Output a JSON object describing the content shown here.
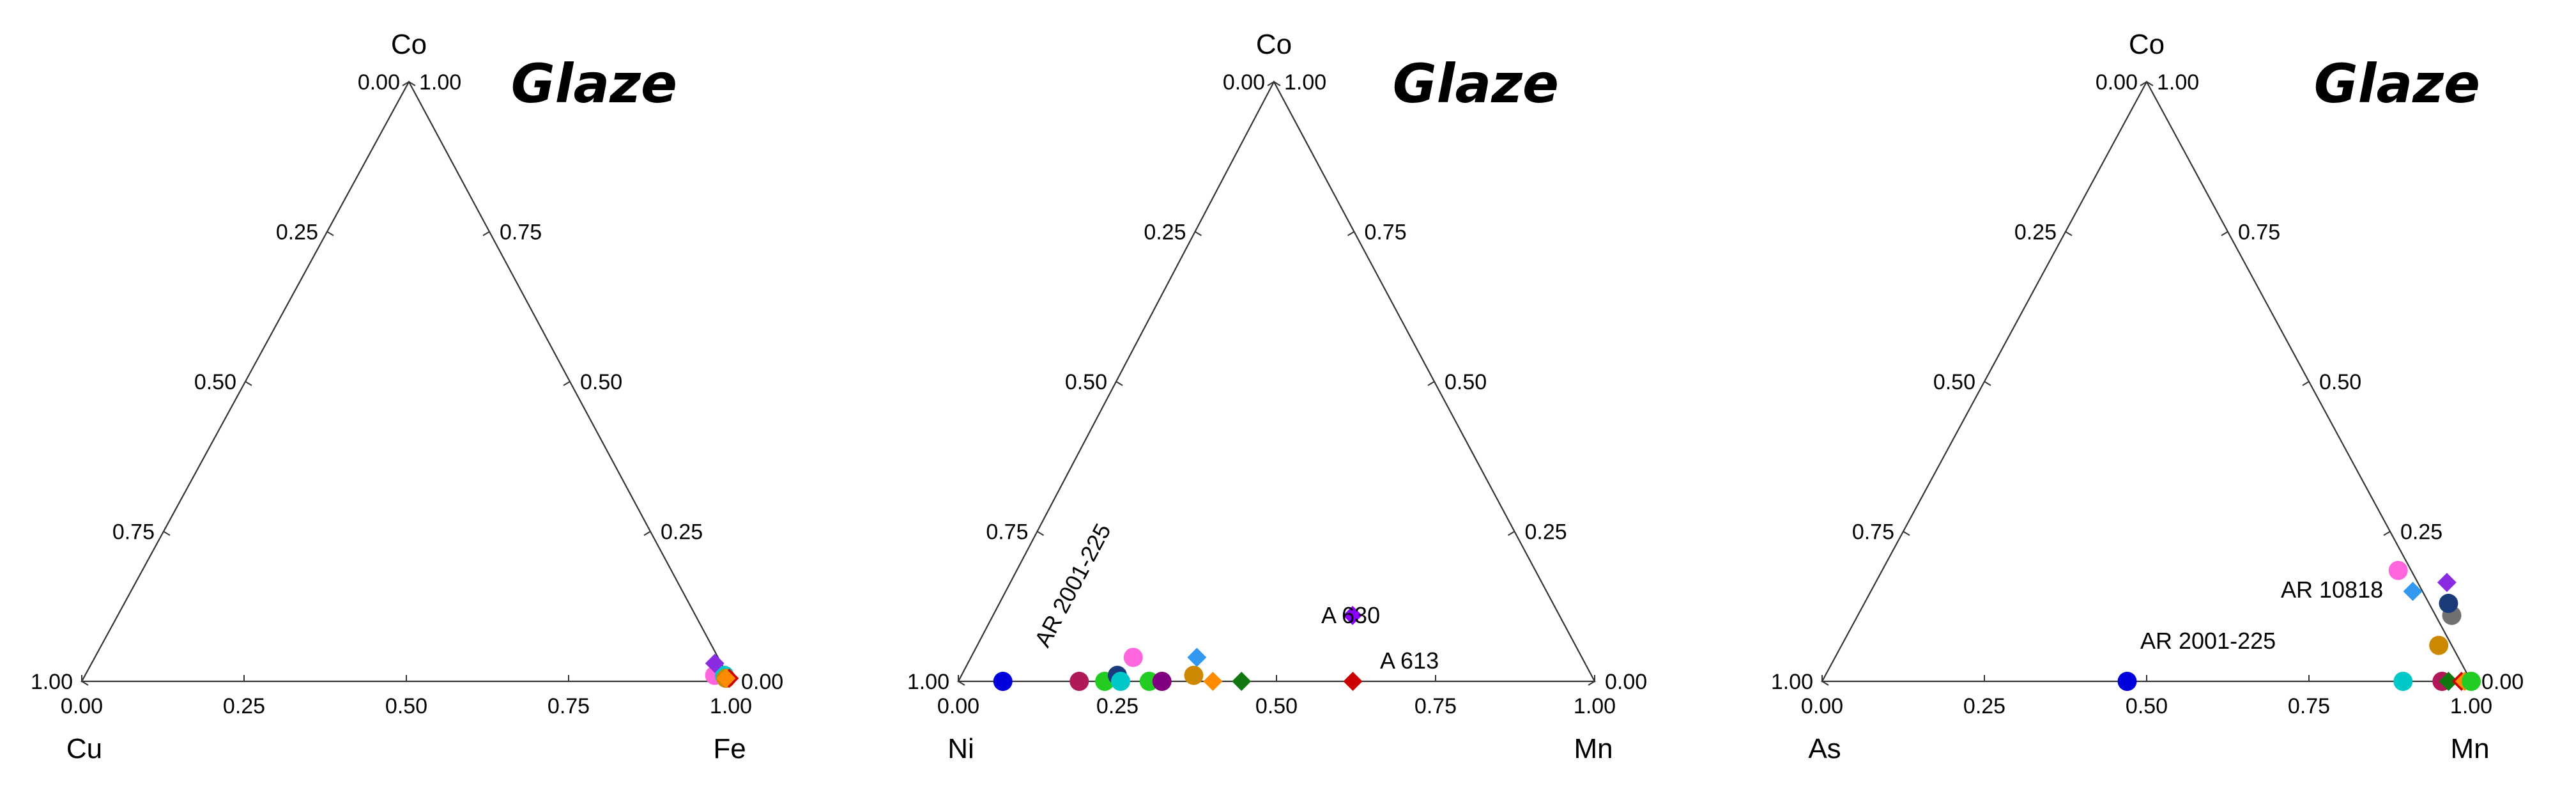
{
  "chart_data": [
    {
      "type": "ternary-scatter",
      "title": "Glaze",
      "vertices": {
        "top": "Co",
        "left": "Cu",
        "right": "Fe"
      },
      "ticks": {
        "left_edge": [
          "0.00",
          "0.25",
          "0.50",
          "0.75",
          "1.00"
        ],
        "right_edge": [
          "1.00",
          "0.75",
          "0.50",
          "0.25",
          "0.00"
        ],
        "bottom_edge": [
          "0.00",
          "0.25",
          "0.50",
          "0.75",
          "1.00"
        ]
      },
      "points": [
        {
          "top": 0.01,
          "right": 0.97,
          "marker": "circle",
          "color": "#ff66dd"
        },
        {
          "top": 0.01,
          "right": 0.985,
          "marker": "circle",
          "color": "#00c8c8"
        },
        {
          "top": 0.03,
          "right": 0.96,
          "marker": "diamond",
          "color": "#8a2be2"
        },
        {
          "top": 0.005,
          "right": 0.99,
          "marker": "circle",
          "color": "#cc8800"
        },
        {
          "top": 0.005,
          "right": 0.995,
          "marker": "diamond",
          "color": "#cc0000"
        },
        {
          "top": 0.005,
          "right": 0.99,
          "marker": "diamond",
          "color": "#ff8c00"
        }
      ],
      "annotations": []
    },
    {
      "type": "ternary-scatter",
      "title": "Glaze",
      "vertices": {
        "top": "Co",
        "left": "Ni",
        "right": "Mn"
      },
      "ticks": {
        "left_edge": [
          "0.00",
          "0.25",
          "0.50",
          "0.75",
          "1.00"
        ],
        "right_edge": [
          "1.00",
          "0.75",
          "0.50",
          "0.25",
          "0.00"
        ],
        "bottom_edge": [
          "0.00",
          "0.25",
          "0.50",
          "0.75",
          "1.00"
        ]
      },
      "points": [
        {
          "top": 0.0,
          "right": 0.07,
          "marker": "circle",
          "color": "#0000dd"
        },
        {
          "top": 0.0,
          "right": 0.19,
          "marker": "circle",
          "color": "#b0185a"
        },
        {
          "top": 0.0,
          "right": 0.23,
          "marker": "circle",
          "color": "#22cc22"
        },
        {
          "top": 0.01,
          "right": 0.245,
          "marker": "circle",
          "color": "#1a3a7a"
        },
        {
          "top": 0.0,
          "right": 0.255,
          "marker": "circle",
          "color": "#00c8c8"
        },
        {
          "top": 0.04,
          "right": 0.255,
          "marker": "circle",
          "color": "#ff66dd"
        },
        {
          "top": 0.0,
          "right": 0.3,
          "marker": "circle",
          "color": "#22cc22"
        },
        {
          "top": 0.0,
          "right": 0.32,
          "marker": "circle",
          "color": "#800080"
        },
        {
          "top": 0.04,
          "right": 0.355,
          "marker": "diamond",
          "color": "#3399ee"
        },
        {
          "top": 0.01,
          "right": 0.365,
          "marker": "circle",
          "color": "#cc8800"
        },
        {
          "top": 0.0,
          "right": 0.4,
          "marker": "diamond",
          "color": "#ff8c00"
        },
        {
          "top": 0.0,
          "right": 0.445,
          "marker": "diamond",
          "color": "#117711"
        },
        {
          "top": 0.11,
          "right": 0.565,
          "marker": "diamond",
          "color": "#8a00ff"
        },
        {
          "top": 0.0,
          "right": 0.62,
          "marker": "diamond",
          "color": "#cc0000"
        }
      ],
      "annotations": [
        {
          "text": "AR 2001-225",
          "rotated": true
        },
        {
          "text": "A 630",
          "rotated": false
        },
        {
          "text": "A 613",
          "rotated": false
        }
      ]
    },
    {
      "type": "ternary-scatter",
      "title": "Glaze",
      "vertices": {
        "top": "Co",
        "left": "As",
        "right": "Mn"
      },
      "ticks": {
        "left_edge": [
          "0.00",
          "0.25",
          "0.50",
          "0.75",
          "1.00"
        ],
        "right_edge": [
          "1.00",
          "0.75",
          "0.50",
          "0.25",
          "0.00"
        ],
        "bottom_edge": [
          "0.00",
          "0.25",
          "0.50",
          "0.75",
          "1.00"
        ]
      },
      "points": [
        {
          "top": 0.0,
          "right": 0.47,
          "marker": "circle",
          "color": "#0000dd"
        },
        {
          "top": 0.185,
          "right": 0.795,
          "marker": "circle",
          "color": "#ff66dd"
        },
        {
          "top": 0.15,
          "right": 0.835,
          "marker": "diamond",
          "color": "#3399ee"
        },
        {
          "top": 0.165,
          "right": 0.88,
          "marker": "diamond",
          "color": "#8a2be2"
        },
        {
          "top": 0.11,
          "right": 0.915,
          "marker": "circle",
          "color": "#707070"
        },
        {
          "top": 0.13,
          "right": 0.9,
          "marker": "circle",
          "color": "#1a3a7a"
        },
        {
          "top": 0.06,
          "right": 0.92,
          "marker": "circle",
          "color": "#cc8800"
        },
        {
          "top": 0.0,
          "right": 0.895,
          "marker": "circle",
          "color": "#00c8c8"
        },
        {
          "top": 0.0,
          "right": 0.955,
          "marker": "circle",
          "color": "#b0185a"
        },
        {
          "top": 0.0,
          "right": 0.965,
          "marker": "diamond",
          "color": "#117711"
        },
        {
          "top": 0.0,
          "right": 0.985,
          "marker": "diamond",
          "color": "#cc0000"
        },
        {
          "top": 0.0,
          "right": 0.99,
          "marker": "diamond",
          "color": "#ff8c00"
        },
        {
          "top": 0.0,
          "right": 1.0,
          "marker": "circle",
          "color": "#22cc22"
        }
      ],
      "annotations": [
        {
          "text": "AR 10818",
          "rotated": false
        },
        {
          "text": "AR 2001-225",
          "rotated": false
        }
      ]
    }
  ]
}
